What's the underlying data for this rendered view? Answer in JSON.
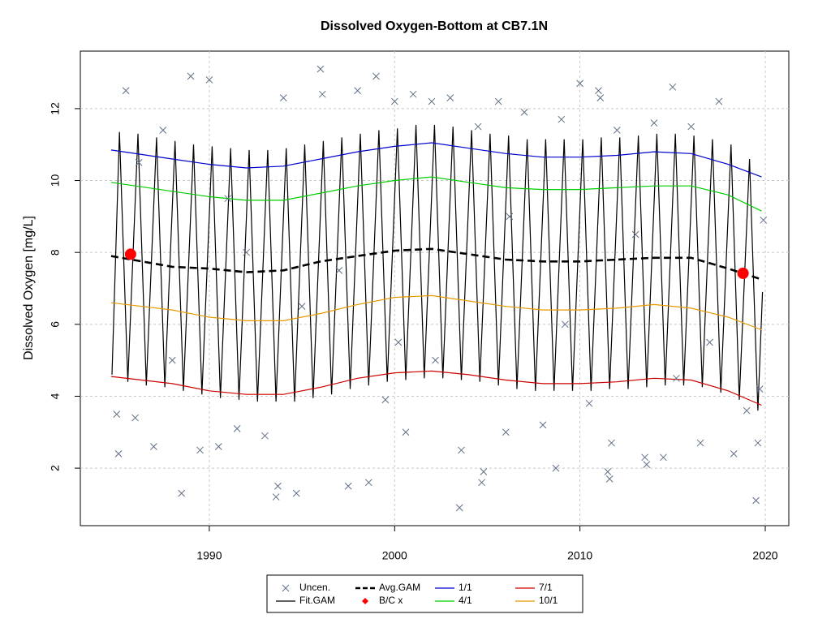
{
  "chart_data": {
    "type": "line",
    "title": "Dissolved Oxygen-Bottom at CB7.1N",
    "y_label": "Dissolved Oxygen [mg/L]",
    "xlim": [
      1983.04,
      2021.27
    ],
    "ylim": [
      0.4,
      13.6
    ],
    "xticks": [
      1990,
      2000,
      2010,
      2020
    ],
    "yticks": [
      2,
      4,
      6,
      8,
      10,
      12
    ],
    "grid": true,
    "legend": "bottom",
    "series": [
      {
        "name": "Uncen.",
        "color": "#5f6f85",
        "style": "scatter",
        "x": [
          1985.1,
          1985,
          1985.5,
          1986,
          1987,
          1987.5,
          1988.5,
          1989,
          1989.5,
          1990,
          1990.5,
          1991.5,
          1993,
          1993.6,
          1993.7,
          1994,
          1994.7,
          1996,
          1996.1,
          1997.5,
          1998,
          1998.6,
          1999,
          1999.5,
          2000,
          2000.6,
          2001,
          2002,
          2003,
          2003.5,
          2003.6,
          2004.5,
          2004.7,
          2004.8,
          2005.6,
          2006,
          2007,
          2008,
          2008.7,
          2009,
          2010,
          2010.5,
          2011,
          2011.1,
          2011.5,
          2011.6,
          2011.7,
          2012,
          2013.5,
          2013.6,
          2014,
          2014.5,
          2015,
          2016,
          2016.5,
          2017.5,
          2018.3,
          2019,
          2019.5,
          2019.6,
          2019.7,
          2019.9,
          1986.2,
          1988,
          1991,
          1995,
          1997,
          2002.2,
          2006.2,
          2009.2,
          2013,
          2017,
          1992,
          2000.2,
          2015.2
        ],
        "values": [
          2.4,
          3.5,
          12.5,
          3.4,
          2.6,
          11.4,
          1.3,
          12.9,
          2.5,
          12.8,
          2.6,
          3.1,
          2.9,
          1.2,
          1.5,
          12.3,
          1.3,
          13.1,
          12.4,
          1.5,
          12.5,
          1.6,
          12.9,
          3.9,
          12.2,
          3.0,
          12.4,
          12.2,
          12.3,
          0.9,
          2.5,
          11.5,
          1.6,
          1.9,
          12.2,
          3.0,
          11.9,
          3.2,
          2.0,
          11.7,
          12.7,
          3.8,
          12.5,
          12.3,
          1.9,
          1.7,
          2.7,
          11.4,
          2.3,
          2.1,
          11.6,
          2.3,
          12.6,
          11.5,
          2.7,
          12.2,
          2.4,
          3.6,
          1.1,
          2.7,
          4.2,
          8.9,
          10.5,
          5.0,
          9.5,
          6.5,
          7.5,
          5.0,
          9.0,
          6.0,
          8.5,
          5.5,
          8.0,
          5.5,
          4.5
        ]
      },
      {
        "name": "Fit.GAM",
        "color": "#000000",
        "style": "line",
        "x": [
          1984.75,
          1985.15,
          1985.6,
          1986.15,
          1986.6,
          1987.15,
          1987.6,
          1988.15,
          1988.6,
          1989.15,
          1989.6,
          1990.15,
          1990.6,
          1991.15,
          1991.6,
          1992.15,
          1992.6,
          1993.15,
          1993.6,
          1994.15,
          1994.6,
          1995.15,
          1995.6,
          1996.15,
          1996.6,
          1997.15,
          1997.6,
          1998.15,
          1998.6,
          1999.15,
          1999.6,
          2000.15,
          2000.6,
          2001.15,
          2001.6,
          2002.15,
          2002.6,
          2003.15,
          2003.6,
          2004.15,
          2004.6,
          2005.15,
          2005.6,
          2006.15,
          2006.6,
          2007.15,
          2007.6,
          2008.15,
          2008.6,
          2009.15,
          2009.6,
          2010.15,
          2010.6,
          2011.15,
          2011.6,
          2012.15,
          2012.6,
          2013.15,
          2013.6,
          2014.15,
          2014.6,
          2015.15,
          2015.6,
          2016.15,
          2016.6,
          2017.15,
          2017.6,
          2018.15,
          2018.6,
          2019.15,
          2019.6,
          2019.85
        ],
        "values": [
          4.6,
          11.35,
          4.4,
          11.3,
          4.3,
          11.2,
          4.25,
          11.1,
          4.15,
          11.0,
          4.05,
          10.95,
          3.95,
          10.9,
          3.9,
          10.85,
          3.85,
          10.85,
          3.85,
          10.9,
          3.85,
          11.0,
          3.95,
          11.1,
          4.05,
          11.2,
          4.2,
          11.3,
          4.3,
          11.4,
          4.4,
          11.45,
          4.45,
          11.55,
          4.5,
          11.55,
          4.5,
          11.5,
          4.45,
          11.4,
          4.4,
          11.3,
          4.3,
          11.25,
          4.2,
          11.15,
          4.15,
          11.15,
          4.15,
          11.15,
          4.15,
          11.15,
          4.15,
          11.2,
          4.2,
          11.2,
          4.2,
          11.25,
          4.25,
          11.3,
          4.3,
          11.3,
          4.3,
          11.25,
          4.25,
          11.15,
          4.1,
          11.0,
          3.9,
          10.6,
          3.6,
          6.9
        ]
      },
      {
        "name": "Avg.GAM",
        "color": "#000000",
        "style": "dashed",
        "x": [
          1984.7,
          1988,
          1990,
          1992,
          1994,
          1996,
          1998,
          2000,
          2002,
          2004,
          2006,
          2008,
          2010,
          2012,
          2014,
          2016,
          2018,
          2019.8
        ],
        "values": [
          7.9,
          7.6,
          7.55,
          7.45,
          7.5,
          7.75,
          7.9,
          8.05,
          8.1,
          7.95,
          7.8,
          7.75,
          7.75,
          7.8,
          7.85,
          7.85,
          7.55,
          7.25
        ]
      },
      {
        "name": "B/C x",
        "color": "#ff0000",
        "style": "point",
        "x": [
          1985.75,
          2018.8
        ],
        "values": [
          7.95,
          7.42
        ]
      },
      {
        "name": "1/1",
        "color": "#0000cd",
        "style": "line",
        "x": [
          1984.7,
          1988,
          1990,
          1992,
          1994,
          1996,
          1998,
          2000,
          2002,
          2004,
          2006,
          2008,
          2010,
          2012,
          2014,
          2016,
          2018,
          2019.8
        ],
        "values": [
          10.85,
          10.6,
          10.45,
          10.35,
          10.4,
          10.6,
          10.8,
          10.95,
          11.05,
          10.9,
          10.75,
          10.65,
          10.65,
          10.7,
          10.8,
          10.75,
          10.45,
          10.1
        ]
      },
      {
        "name": "4/1",
        "color": "#00cd00",
        "style": "line",
        "x": [
          1984.7,
          1988,
          1990,
          1992,
          1994,
          1996,
          1998,
          2000,
          2002,
          2004,
          2006,
          2008,
          2010,
          2012,
          2014,
          2016,
          2018,
          2019.8
        ],
        "values": [
          9.95,
          9.7,
          9.55,
          9.45,
          9.45,
          9.65,
          9.85,
          10.0,
          10.1,
          9.95,
          9.8,
          9.75,
          9.75,
          9.8,
          9.85,
          9.85,
          9.6,
          9.15
        ]
      },
      {
        "name": "7/1",
        "color": "#cd0000",
        "style": "line",
        "x": [
          1984.7,
          1988,
          1990,
          1992,
          1994,
          1996,
          1998,
          2000,
          2002,
          2004,
          2006,
          2008,
          2010,
          2012,
          2014,
          2016,
          2018,
          2019.8
        ],
        "values": [
          4.55,
          4.35,
          4.15,
          4.05,
          4.05,
          4.25,
          4.5,
          4.65,
          4.7,
          4.6,
          4.45,
          4.35,
          4.35,
          4.4,
          4.5,
          4.45,
          4.15,
          3.75
        ]
      },
      {
        "name": "10/1",
        "color": "#e69a00",
        "style": "line",
        "x": [
          1984.7,
          1988,
          1990,
          1992,
          1994,
          1996,
          1998,
          2000,
          2002,
          2004,
          2006,
          2008,
          2010,
          2012,
          2014,
          2016,
          2018,
          2019.8
        ],
        "values": [
          6.6,
          6.4,
          6.2,
          6.1,
          6.1,
          6.3,
          6.55,
          6.75,
          6.8,
          6.65,
          6.5,
          6.4,
          6.4,
          6.45,
          6.55,
          6.45,
          6.2,
          5.85
        ]
      }
    ]
  }
}
